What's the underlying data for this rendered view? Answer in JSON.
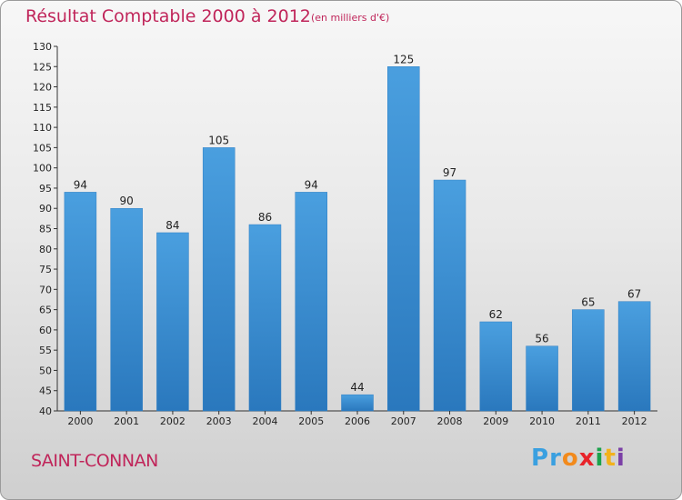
{
  "header": {
    "title": "Résultat Comptable 2000 à 2012",
    "subtitle": "(en milliers d'€)"
  },
  "footer": {
    "commune": "SAINT-CONNAN",
    "logo_letters": [
      "P",
      "r",
      "o",
      "x",
      "i",
      "t",
      "i"
    ],
    "logo_colors": [
      "#3aa0e0",
      "#3aa0e0",
      "#f28a1c",
      "#e8232a",
      "#1aa24a",
      "#f2b21c",
      "#7b3fa6"
    ]
  },
  "colors": {
    "bar": "#4a9fdf",
    "bar_dark": "#2a78bd",
    "axis": "#333333",
    "text_accent": "#c0255a"
  },
  "chart_data": {
    "type": "bar",
    "title": "Résultat Comptable 2000 à 2012",
    "subtitle": "(en milliers d'€)",
    "categories": [
      "2000",
      "2001",
      "2002",
      "2003",
      "2004",
      "2005",
      "2006",
      "2007",
      "2008",
      "2009",
      "2010",
      "2011",
      "2012"
    ],
    "values": [
      94,
      90,
      84,
      105,
      86,
      94,
      44,
      125,
      97,
      62,
      56,
      65,
      67
    ],
    "ylim": [
      40,
      130
    ],
    "yticks": [
      40,
      45,
      50,
      55,
      60,
      65,
      70,
      75,
      80,
      85,
      90,
      95,
      100,
      105,
      110,
      115,
      120,
      125,
      130
    ],
    "grid": false,
    "legend": "none"
  }
}
